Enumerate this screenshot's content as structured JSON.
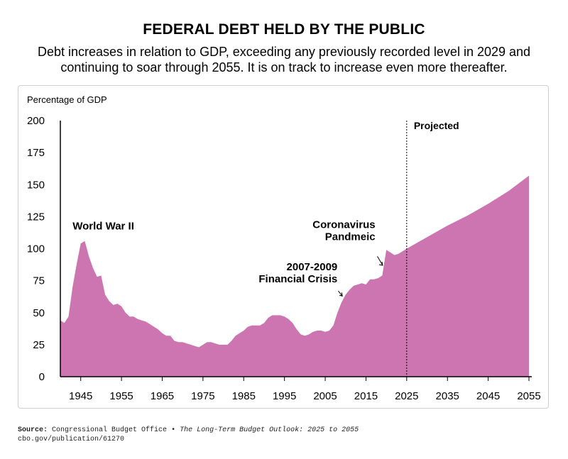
{
  "header": {
    "title": "FEDERAL DEBT HELD BY THE PUBLIC",
    "subtitle_line1": "Debt increases in relation to GDP, exceeding any previously recorded level in 2029 and",
    "subtitle_line2": "continuing to soar through 2055. It is on track to increase even more thereafter."
  },
  "footer": {
    "source_label": "Source:",
    "source_org": "Congressional Budget Office",
    "bullet": "•",
    "source_title": "The Long-Term Budget Outlook: 2025 to 2055",
    "source_url": "cbo.gov/publication/61270"
  },
  "chart_data": {
    "type": "area",
    "ylabel": "Percentage of GDP",
    "xlabel": "",
    "xlim": [
      1940,
      2055
    ],
    "ylim": [
      0,
      200
    ],
    "yticks": [
      0,
      25,
      50,
      75,
      100,
      125,
      150,
      175,
      200
    ],
    "xticks": [
      1945,
      1955,
      1965,
      1975,
      1985,
      1995,
      2005,
      2015,
      2025,
      2035,
      2045,
      2055
    ],
    "grid": false,
    "projection_start": 2025,
    "projection_label": "Projected",
    "colors": {
      "area": "#CC75B1",
      "axis": "#000000"
    },
    "x": [
      1940,
      1941,
      1942,
      1943,
      1944,
      1945,
      1946,
      1947,
      1948,
      1949,
      1950,
      1951,
      1952,
      1953,
      1954,
      1955,
      1956,
      1957,
      1958,
      1959,
      1960,
      1961,
      1962,
      1963,
      1964,
      1965,
      1966,
      1967,
      1968,
      1969,
      1970,
      1971,
      1972,
      1973,
      1974,
      1975,
      1976,
      1977,
      1978,
      1979,
      1980,
      1981,
      1982,
      1983,
      1984,
      1985,
      1986,
      1987,
      1988,
      1989,
      1990,
      1991,
      1992,
      1993,
      1994,
      1995,
      1996,
      1997,
      1998,
      1999,
      2000,
      2001,
      2002,
      2003,
      2004,
      2005,
      2006,
      2007,
      2008,
      2009,
      2010,
      2011,
      2012,
      2013,
      2014,
      2015,
      2016,
      2017,
      2018,
      2019,
      2020,
      2021,
      2022,
      2023,
      2024,
      2025,
      2030,
      2035,
      2040,
      2045,
      2050,
      2055
    ],
    "y": [
      44,
      42,
      47,
      70,
      88,
      104,
      106,
      94,
      85,
      78,
      79,
      64,
      59,
      56,
      57,
      55,
      50,
      47,
      47,
      45,
      44,
      43,
      41,
      39,
      37,
      34,
      32,
      32,
      28,
      27,
      27,
      26,
      25,
      24,
      23,
      25,
      27,
      27,
      26,
      25,
      25,
      25,
      28,
      32,
      34,
      36,
      39,
      40,
      40,
      40,
      42,
      46,
      48,
      48,
      48,
      47,
      45,
      42,
      37,
      33,
      32,
      33,
      35,
      36,
      36,
      35,
      36,
      40,
      50,
      58,
      64,
      68,
      71,
      72,
      73,
      72,
      76,
      76,
      77,
      79,
      99,
      97,
      95,
      96,
      98,
      100,
      109,
      118,
      126,
      135,
      145,
      157
    ],
    "annotations": [
      {
        "text_lines": [
          "World War II"
        ],
        "x": 1946,
        "y": 106
      },
      {
        "text_lines": [
          "2007-2009",
          "Financial Crisis"
        ],
        "x": 2009,
        "y": 63
      },
      {
        "text_lines": [
          "Coronavirus",
          "Pandmeic"
        ],
        "x": 2019,
        "y": 87
      }
    ]
  }
}
